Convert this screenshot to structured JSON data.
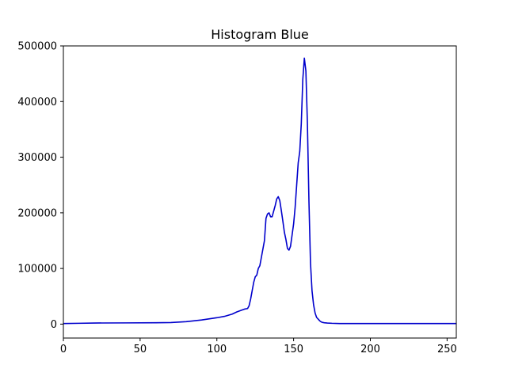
{
  "chart_data": {
    "type": "line",
    "title": "Histogram Blue",
    "xlabel": "",
    "ylabel": "",
    "xlim": [
      0,
      256
    ],
    "ylim": [
      -25000,
      500000
    ],
    "x_ticks": [
      0,
      50,
      100,
      150,
      200,
      250
    ],
    "x_tick_labels": [
      "0",
      "50",
      "100",
      "150",
      "200",
      "250"
    ],
    "y_ticks": [
      0,
      100000,
      200000,
      300000,
      400000,
      500000
    ],
    "y_tick_labels": [
      "0",
      "100000",
      "200000",
      "300000",
      "400000",
      "500000"
    ],
    "grid": false,
    "series": [
      {
        "color": "#0000cc",
        "x": [
          0,
          10,
          20,
          40,
          60,
          70,
          80,
          90,
          100,
          105,
          110,
          113,
          116,
          118,
          120,
          121,
          122,
          123,
          124,
          125,
          126,
          127,
          128,
          129,
          130,
          131,
          132,
          133,
          134,
          135,
          136,
          137,
          138,
          139,
          140,
          141,
          142,
          143,
          144,
          145,
          146,
          147,
          148,
          149,
          150,
          151,
          152,
          153,
          154,
          155,
          156,
          157,
          158,
          159,
          160,
          161,
          162,
          163,
          164,
          165,
          166,
          167,
          168,
          169,
          170,
          172,
          175,
          180,
          190,
          200,
          256
        ],
        "y": [
          1000,
          1500,
          2000,
          2200,
          2500,
          2800,
          4500,
          7500,
          11500,
          14000,
          18000,
          22000,
          25000,
          27000,
          28000,
          33000,
          45000,
          60000,
          75000,
          85000,
          88000,
          100000,
          105000,
          120000,
          135000,
          150000,
          190000,
          198000,
          200000,
          193000,
          193000,
          203000,
          213000,
          225000,
          229000,
          222000,
          204000,
          185000,
          165000,
          152000,
          136000,
          133000,
          140000,
          160000,
          180000,
          210000,
          250000,
          290000,
          310000,
          360000,
          440000,
          478000,
          455000,
          360000,
          220000,
          110000,
          60000,
          35000,
          20000,
          12000,
          9000,
          6000,
          4000,
          3000,
          2500,
          2000,
          1500,
          1000,
          1000,
          1000,
          1000
        ]
      }
    ]
  }
}
